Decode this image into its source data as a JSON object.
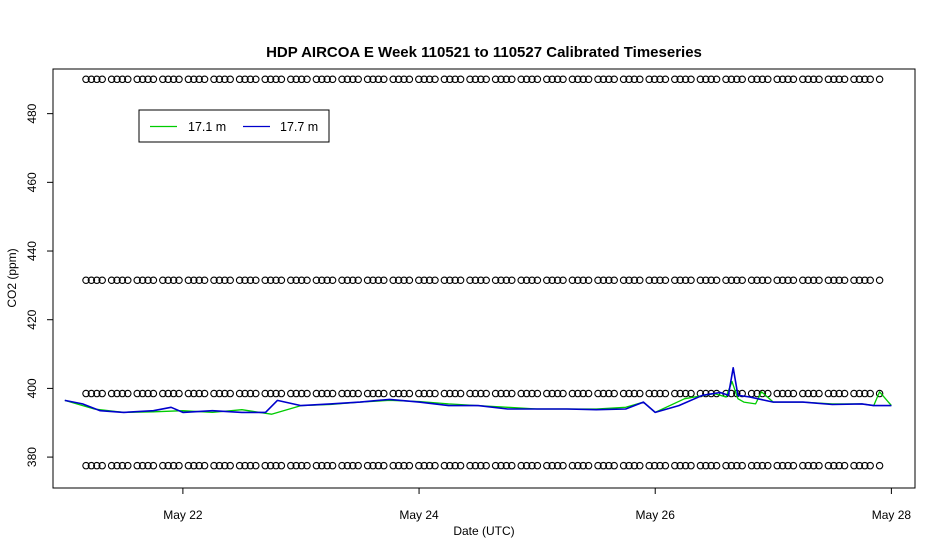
{
  "chart_data": {
    "type": "line",
    "title": "HDP AIRCOA E  Week 110521 to 110527  Calibrated Timeseries",
    "xlabel": "Date (UTC)",
    "ylabel": "CO2 (ppm)",
    "x_unit": "days of May 2011",
    "xlim": [
      20.9,
      28.2
    ],
    "ylim": [
      371,
      493
    ],
    "x_ticks": [
      {
        "value": 22,
        "label": "May 22"
      },
      {
        "value": 24,
        "label": "May 24"
      },
      {
        "value": 26,
        "label": "May 26"
      },
      {
        "value": 28,
        "label": "May 28"
      }
    ],
    "y_ticks": [
      {
        "value": 380,
        "label": "380"
      },
      {
        "value": 400,
        "label": "400"
      },
      {
        "value": 420,
        "label": "420"
      },
      {
        "value": 440,
        "label": "440"
      },
      {
        "value": 460,
        "label": "460"
      },
      {
        "value": 480,
        "label": "480"
      }
    ],
    "grid": false,
    "legend_position": "top-left",
    "series": [
      {
        "name": "17.1 m",
        "color": "#00cc00",
        "x": [
          21.0,
          21.25,
          21.5,
          21.75,
          22.0,
          22.25,
          22.5,
          22.75,
          23.0,
          23.25,
          23.5,
          23.75,
          24.0,
          24.25,
          24.5,
          24.75,
          25.0,
          25.25,
          25.5,
          25.75,
          25.9,
          26.0,
          26.25,
          26.5,
          26.6,
          26.65,
          26.7,
          26.75,
          26.85,
          26.9,
          27.0,
          27.25,
          27.5,
          27.75,
          27.85,
          27.9,
          28.0
        ],
        "y": [
          396.5,
          394.0,
          393.0,
          393.2,
          393.5,
          393.0,
          393.8,
          392.5,
          395.0,
          395.3,
          396.0,
          396.5,
          396.2,
          395.5,
          395.0,
          394.5,
          394.0,
          394.0,
          394.0,
          394.5,
          396.0,
          393.0,
          397.0,
          398.5,
          397.5,
          402.0,
          397.0,
          396.0,
          395.5,
          399.0,
          396.0,
          396.0,
          395.5,
          395.5,
          395.0,
          399.0,
          395.0
        ]
      },
      {
        "name": "17.7 m",
        "color": "#0000cc",
        "x": [
          21.0,
          21.15,
          21.3,
          21.5,
          21.75,
          21.9,
          22.0,
          22.25,
          22.5,
          22.7,
          22.8,
          23.0,
          23.25,
          23.5,
          23.75,
          24.0,
          24.25,
          24.5,
          24.75,
          25.0,
          25.25,
          25.5,
          25.75,
          25.9,
          26.0,
          26.2,
          26.4,
          26.55,
          26.62,
          26.66,
          26.7,
          26.8,
          27.0,
          27.25,
          27.5,
          27.75,
          27.85,
          28.0
        ],
        "y": [
          396.5,
          395.5,
          393.5,
          393.0,
          393.5,
          394.5,
          393.0,
          393.5,
          393.0,
          393.0,
          396.5,
          395.0,
          395.5,
          396.0,
          396.8,
          396.0,
          395.0,
          395.0,
          394.0,
          394.0,
          394.0,
          393.8,
          394.0,
          396.0,
          393.0,
          395.0,
          398.0,
          398.8,
          398.0,
          406.0,
          398.0,
          397.5,
          396.0,
          396.0,
          395.3,
          395.5,
          395.0,
          395.0
        ]
      }
    ],
    "marker_rows": [
      {
        "y": 490,
        "symbol": "o"
      },
      {
        "y": 431.5,
        "symbol": "o"
      },
      {
        "y": 398.5,
        "symbol": "o"
      },
      {
        "y": 377.5,
        "symbol": "o"
      }
    ]
  }
}
